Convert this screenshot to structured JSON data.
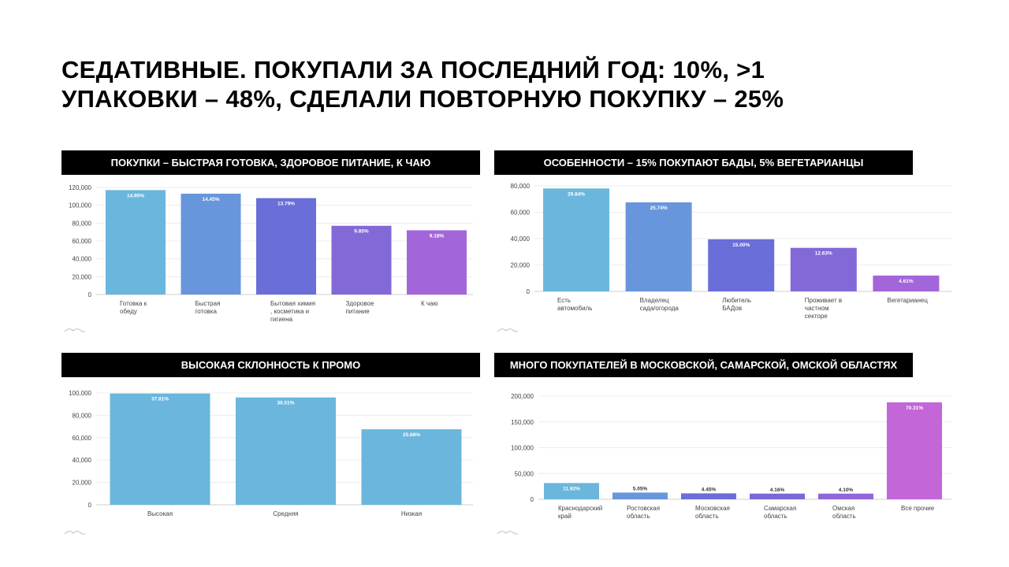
{
  "slide": {
    "title_line1": "СЕДАТИВНЫЕ. ПОКУПАЛИ ЗА ПОСЛЕДНИЙ ГОД: 10%, >1",
    "title_line2": "УПАКОВКИ – 48%, СДЕЛАЛИ ПОВТОРНУЮ ПОКУПКУ – 25%"
  },
  "panels": [
    {
      "header": "ПОКУПКИ – БЫСТРАЯ ГОТОВКА, ЗДОРОВОЕ ПИТАНИЕ, К ЧАЮ"
    },
    {
      "header": "ОСОБЕННОСТИ – 15% ПОКУПАЮТ БАДЫ, 5% ВЕГЕТАРИАНЦЫ"
    },
    {
      "header": "ВЫСОКАЯ СКЛОННОСТЬ К ПРОМО"
    },
    {
      "header": "МНОГО ПОКУПАТЕЛЕЙ В МОСКОВСКОЙ, САМАРСКОЙ, ОМСКОЙ ОБЛАСТЯХ"
    }
  ],
  "chart_data": [
    {
      "type": "bar",
      "categories": [
        [
          "Готовка к",
          "обеду"
        ],
        [
          "Быстрая",
          "готовка"
        ],
        [
          "Бытовая химия",
          ", косметика и",
          "гигиена"
        ],
        [
          "Здоровое",
          "питание"
        ],
        [
          "К чаю"
        ]
      ],
      "values": [
        117000,
        113000,
        108000,
        77000,
        72000
      ],
      "labels": [
        "14.95%",
        "14.45%",
        "13.79%",
        "9.85%",
        "9.18%"
      ],
      "colors": [
        "#6bb6dc",
        "#6896dc",
        "#6a6ed8",
        "#8368d8",
        "#a366da"
      ],
      "yticks": [
        "0",
        "20,000",
        "40,000",
        "60,000",
        "80,000",
        "100,000",
        "120,000"
      ],
      "ylim": [
        0,
        120000
      ]
    },
    {
      "type": "bar",
      "categories": [
        [
          "Есть",
          "автомобиль"
        ],
        [
          "Владелец",
          "сада/огорода"
        ],
        [
          "Любитель",
          "БАДов"
        ],
        [
          "Проживает в",
          "частном",
          "секторе"
        ],
        [
          "Вегетарианец"
        ]
      ],
      "values": [
        78000,
        67500,
        39500,
        33000,
        12000
      ],
      "labels": [
        "29.84%",
        "25.74%",
        "15.00%",
        "12.63%",
        "4.61%"
      ],
      "colors": [
        "#6bb6dc",
        "#6896dc",
        "#6a6ed8",
        "#8368d8",
        "#a366da"
      ],
      "yticks": [
        "0",
        "20,000",
        "40,000",
        "60,000",
        "80,000"
      ],
      "ylim": [
        0,
        80000
      ]
    },
    {
      "type": "bar",
      "categories": [
        [
          "Высокая"
        ],
        [
          "Средняя"
        ],
        [
          "Низкая"
        ]
      ],
      "values": [
        99500,
        96000,
        67500
      ],
      "labels": [
        "37.81%",
        "36.51%",
        "25.68%"
      ],
      "colors": [
        "#6bb6dc",
        "#6bb6dc",
        "#6bb6dc"
      ],
      "yticks": [
        "0",
        "20,000",
        "40,000",
        "60,000",
        "80,000",
        "100,000"
      ],
      "ylim": [
        0,
        100000
      ]
    },
    {
      "type": "bar",
      "categories": [
        [
          "Краснодарский",
          "край"
        ],
        [
          "Ростовская",
          "область"
        ],
        [
          "Московская",
          "область"
        ],
        [
          "Самарская",
          "область"
        ],
        [
          "Омская",
          "область"
        ],
        [
          "Все прочие"
        ]
      ],
      "values": [
        31500,
        13000,
        11500,
        11000,
        11000,
        188000
      ],
      "labels": [
        "11.92%",
        "5.05%",
        "4.45%",
        "4.16%",
        "4.10%",
        "70.31%"
      ],
      "colors": [
        "#6bb6dc",
        "#6896dc",
        "#6a6ed8",
        "#7b68d8",
        "#9166da",
        "#c366d8"
      ],
      "yticks": [
        "0",
        "50,000",
        "100,000",
        "150,000",
        "200,000"
      ],
      "ylim": [
        0,
        200000
      ]
    }
  ]
}
